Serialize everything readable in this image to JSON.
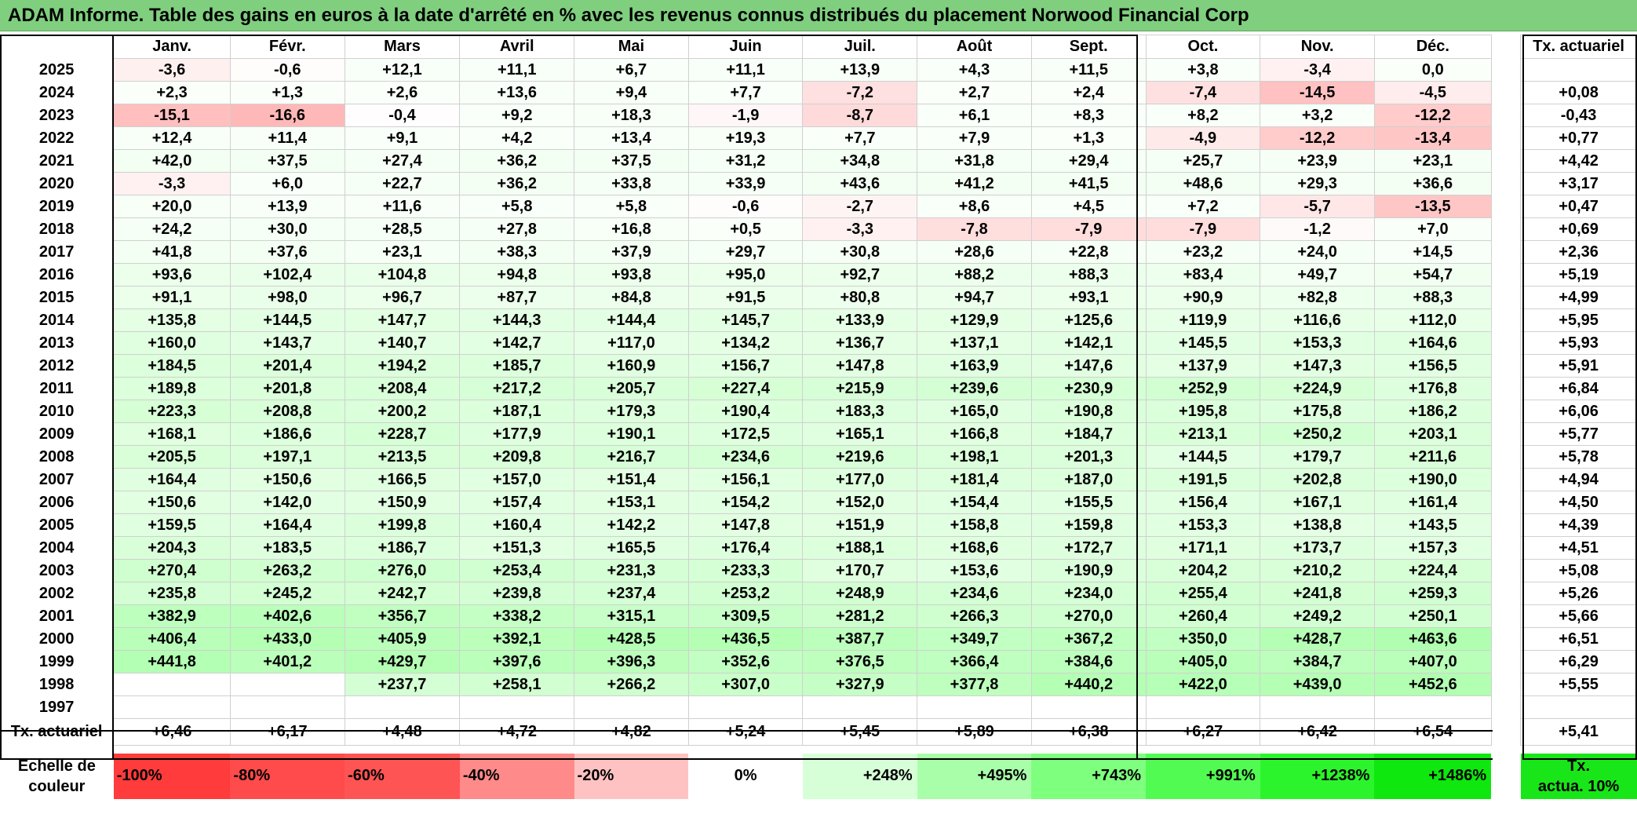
{
  "title": "ADAM Informe. Table des gains en euros à la date d'arrêté en % avec les revenus connus distribués du placement Norwood Financial Corp",
  "months": [
    "Janv.",
    "Févr.",
    "Mars",
    "Avril",
    "Mai",
    "Juin",
    "Juil.",
    "Août",
    "Sept.",
    "Oct.",
    "Nov.",
    "Déc."
  ],
  "rate_header": "Tx. actuariel",
  "rows": [
    {
      "year": "2025",
      "values": [
        "-3,6",
        "-0,6",
        "+12,1",
        "+11,1",
        "+6,7",
        "+11,1",
        "+13,9",
        "+4,3",
        "+11,5",
        "+3,8",
        "-3,4",
        "0,0"
      ],
      "rate": ""
    },
    {
      "year": "2024",
      "values": [
        "+2,3",
        "+1,3",
        "+2,6",
        "+13,6",
        "+9,4",
        "+7,7",
        "-7,2",
        "+2,7",
        "+2,4",
        "-7,4",
        "-14,5",
        "-4,5"
      ],
      "rate": "+0,08"
    },
    {
      "year": "2023",
      "values": [
        "-15,1",
        "-16,6",
        "-0,4",
        "+9,2",
        "+18,3",
        "-1,9",
        "-8,7",
        "+6,1",
        "+8,3",
        "+8,2",
        "+3,2",
        "-12,2"
      ],
      "rate": "-0,43"
    },
    {
      "year": "2022",
      "values": [
        "+12,4",
        "+11,4",
        "+9,1",
        "+4,2",
        "+13,4",
        "+19,3",
        "+7,7",
        "+7,9",
        "+1,3",
        "-4,9",
        "-12,2",
        "-13,4"
      ],
      "rate": "+0,77"
    },
    {
      "year": "2021",
      "values": [
        "+42,0",
        "+37,5",
        "+27,4",
        "+36,2",
        "+37,5",
        "+31,2",
        "+34,8",
        "+31,8",
        "+29,4",
        "+25,7",
        "+23,9",
        "+23,1"
      ],
      "rate": "+4,42"
    },
    {
      "year": "2020",
      "values": [
        "-3,3",
        "+6,0",
        "+22,7",
        "+36,2",
        "+33,8",
        "+33,9",
        "+43,6",
        "+41,2",
        "+41,5",
        "+48,6",
        "+29,3",
        "+36,6"
      ],
      "rate": "+3,17"
    },
    {
      "year": "2019",
      "values": [
        "+20,0",
        "+13,9",
        "+11,6",
        "+5,8",
        "+5,8",
        "-0,6",
        "-2,7",
        "+8,6",
        "+4,5",
        "+7,2",
        "-5,7",
        "-13,5"
      ],
      "rate": "+0,47"
    },
    {
      "year": "2018",
      "values": [
        "+24,2",
        "+30,0",
        "+28,5",
        "+27,8",
        "+16,8",
        "+0,5",
        "-3,3",
        "-7,8",
        "-7,9",
        "-7,9",
        "-1,2",
        "+7,0"
      ],
      "rate": "+0,69"
    },
    {
      "year": "2017",
      "values": [
        "+41,8",
        "+37,6",
        "+23,1",
        "+38,3",
        "+37,9",
        "+29,7",
        "+30,8",
        "+28,6",
        "+22,8",
        "+23,2",
        "+24,0",
        "+14,5"
      ],
      "rate": "+2,36"
    },
    {
      "year": "2016",
      "values": [
        "+93,6",
        "+102,4",
        "+104,8",
        "+94,8",
        "+93,8",
        "+95,0",
        "+92,7",
        "+88,2",
        "+88,3",
        "+83,4",
        "+49,7",
        "+54,7"
      ],
      "rate": "+5,19"
    },
    {
      "year": "2015",
      "values": [
        "+91,1",
        "+98,0",
        "+96,7",
        "+87,7",
        "+84,8",
        "+91,5",
        "+80,8",
        "+94,7",
        "+93,1",
        "+90,9",
        "+82,8",
        "+88,3"
      ],
      "rate": "+4,99"
    },
    {
      "year": "2014",
      "values": [
        "+135,8",
        "+144,5",
        "+147,7",
        "+144,3",
        "+144,4",
        "+145,7",
        "+133,9",
        "+129,9",
        "+125,6",
        "+119,9",
        "+116,6",
        "+112,0"
      ],
      "rate": "+5,95"
    },
    {
      "year": "2013",
      "values": [
        "+160,0",
        "+143,7",
        "+140,7",
        "+142,7",
        "+117,0",
        "+134,2",
        "+136,7",
        "+137,1",
        "+142,1",
        "+145,5",
        "+153,3",
        "+164,6"
      ],
      "rate": "+5,93"
    },
    {
      "year": "2012",
      "values": [
        "+184,5",
        "+201,4",
        "+194,2",
        "+185,7",
        "+160,9",
        "+156,7",
        "+147,8",
        "+163,9",
        "+147,6",
        "+137,9",
        "+147,3",
        "+156,5"
      ],
      "rate": "+5,91"
    },
    {
      "year": "2011",
      "values": [
        "+189,8",
        "+201,8",
        "+208,4",
        "+217,2",
        "+205,7",
        "+227,4",
        "+215,9",
        "+239,6",
        "+230,9",
        "+252,9",
        "+224,9",
        "+176,8"
      ],
      "rate": "+6,84"
    },
    {
      "year": "2010",
      "values": [
        "+223,3",
        "+208,8",
        "+200,2",
        "+187,1",
        "+179,3",
        "+190,4",
        "+183,3",
        "+165,0",
        "+190,8",
        "+195,8",
        "+175,8",
        "+186,2"
      ],
      "rate": "+6,06"
    },
    {
      "year": "2009",
      "values": [
        "+168,1",
        "+186,6",
        "+228,7",
        "+177,9",
        "+190,1",
        "+172,5",
        "+165,1",
        "+166,8",
        "+184,7",
        "+213,1",
        "+250,2",
        "+203,1"
      ],
      "rate": "+5,77"
    },
    {
      "year": "2008",
      "values": [
        "+205,5",
        "+197,1",
        "+213,5",
        "+209,8",
        "+216,7",
        "+234,6",
        "+219,6",
        "+198,1",
        "+201,3",
        "+144,5",
        "+179,7",
        "+211,6"
      ],
      "rate": "+5,78"
    },
    {
      "year": "2007",
      "values": [
        "+164,4",
        "+150,6",
        "+166,5",
        "+157,0",
        "+151,4",
        "+156,1",
        "+177,0",
        "+181,4",
        "+187,0",
        "+191,5",
        "+202,8",
        "+190,0"
      ],
      "rate": "+4,94"
    },
    {
      "year": "2006",
      "values": [
        "+150,6",
        "+142,0",
        "+150,9",
        "+157,4",
        "+153,1",
        "+154,2",
        "+152,0",
        "+154,4",
        "+155,5",
        "+156,4",
        "+167,1",
        "+161,4"
      ],
      "rate": "+4,50"
    },
    {
      "year": "2005",
      "values": [
        "+159,5",
        "+164,4",
        "+199,8",
        "+160,4",
        "+142,2",
        "+147,8",
        "+151,9",
        "+158,8",
        "+159,8",
        "+153,3",
        "+138,8",
        "+143,5"
      ],
      "rate": "+4,39"
    },
    {
      "year": "2004",
      "values": [
        "+204,3",
        "+183,5",
        "+186,7",
        "+151,3",
        "+165,5",
        "+176,4",
        "+188,1",
        "+168,6",
        "+172,7",
        "+171,1",
        "+173,7",
        "+157,3"
      ],
      "rate": "+4,51"
    },
    {
      "year": "2003",
      "values": [
        "+270,4",
        "+263,2",
        "+276,0",
        "+253,4",
        "+231,3",
        "+233,3",
        "+170,7",
        "+153,6",
        "+190,9",
        "+204,2",
        "+210,2",
        "+224,4"
      ],
      "rate": "+5,08"
    },
    {
      "year": "2002",
      "values": [
        "+235,8",
        "+245,2",
        "+242,7",
        "+239,8",
        "+237,4",
        "+253,2",
        "+248,9",
        "+234,6",
        "+234,0",
        "+255,4",
        "+241,8",
        "+259,3"
      ],
      "rate": "+5,26"
    },
    {
      "year": "2001",
      "values": [
        "+382,9",
        "+402,6",
        "+356,7",
        "+338,2",
        "+315,1",
        "+309,5",
        "+281,2",
        "+266,3",
        "+270,0",
        "+260,4",
        "+249,2",
        "+250,1"
      ],
      "rate": "+5,66"
    },
    {
      "year": "2000",
      "values": [
        "+406,4",
        "+433,0",
        "+405,9",
        "+392,1",
        "+428,5",
        "+436,5",
        "+387,7",
        "+349,7",
        "+367,2",
        "+350,0",
        "+428,7",
        "+463,6"
      ],
      "rate": "+6,51"
    },
    {
      "year": "1999",
      "values": [
        "+441,8",
        "+401,2",
        "+429,7",
        "+397,6",
        "+396,3",
        "+352,6",
        "+376,5",
        "+366,4",
        "+384,6",
        "+405,0",
        "+384,7",
        "+407,0"
      ],
      "rate": "+6,29"
    },
    {
      "year": "1998",
      "values": [
        "",
        "",
        "+237,7",
        "+258,1",
        "+266,2",
        "+307,0",
        "+327,9",
        "+377,8",
        "+440,2",
        "+422,0",
        "+439,0",
        "+452,6"
      ],
      "rate": "+5,55"
    },
    {
      "year": "1997",
      "values": [
        "",
        "",
        "",
        "",
        "",
        "",
        "",
        "",
        "",
        "",
        "",
        ""
      ],
      "rate": ""
    }
  ],
  "footer": {
    "label": "Tx. actuariel",
    "values": [
      "+6,46",
      "+6,17",
      "+4,48",
      "+4,72",
      "+4,82",
      "+5,24",
      "+5,45",
      "+5,89",
      "+6,38",
      "+6,27",
      "+6,42",
      "+6,54"
    ],
    "rate": "+5,41"
  },
  "scale": {
    "label_line1": "Echelle de",
    "label_line2": "couleur",
    "items": [
      {
        "label": "-100%",
        "color": "#ff3b3b"
      },
      {
        "label": "-80%",
        "color": "#ff4b4b"
      },
      {
        "label": "-60%",
        "color": "#ff5454"
      },
      {
        "label": "-40%",
        "color": "#ff8a8a"
      },
      {
        "label": "-20%",
        "color": "#ffc2c2"
      },
      {
        "label": "0%",
        "color": "#ffffff"
      },
      {
        "label": "+248%",
        "color": "#d7ffd7"
      },
      {
        "label": "+495%",
        "color": "#a9ffa9"
      },
      {
        "label": "+743%",
        "color": "#7eff7e"
      },
      {
        "label": "+991%",
        "color": "#52fb52"
      },
      {
        "label": "+1238%",
        "color": "#2cf42c"
      },
      {
        "label": "+1486%",
        "color": "#0ee80e"
      }
    ],
    "target_line1": "Tx.",
    "target_line2": "actua. 10%",
    "target_color": "#19e619"
  }
}
